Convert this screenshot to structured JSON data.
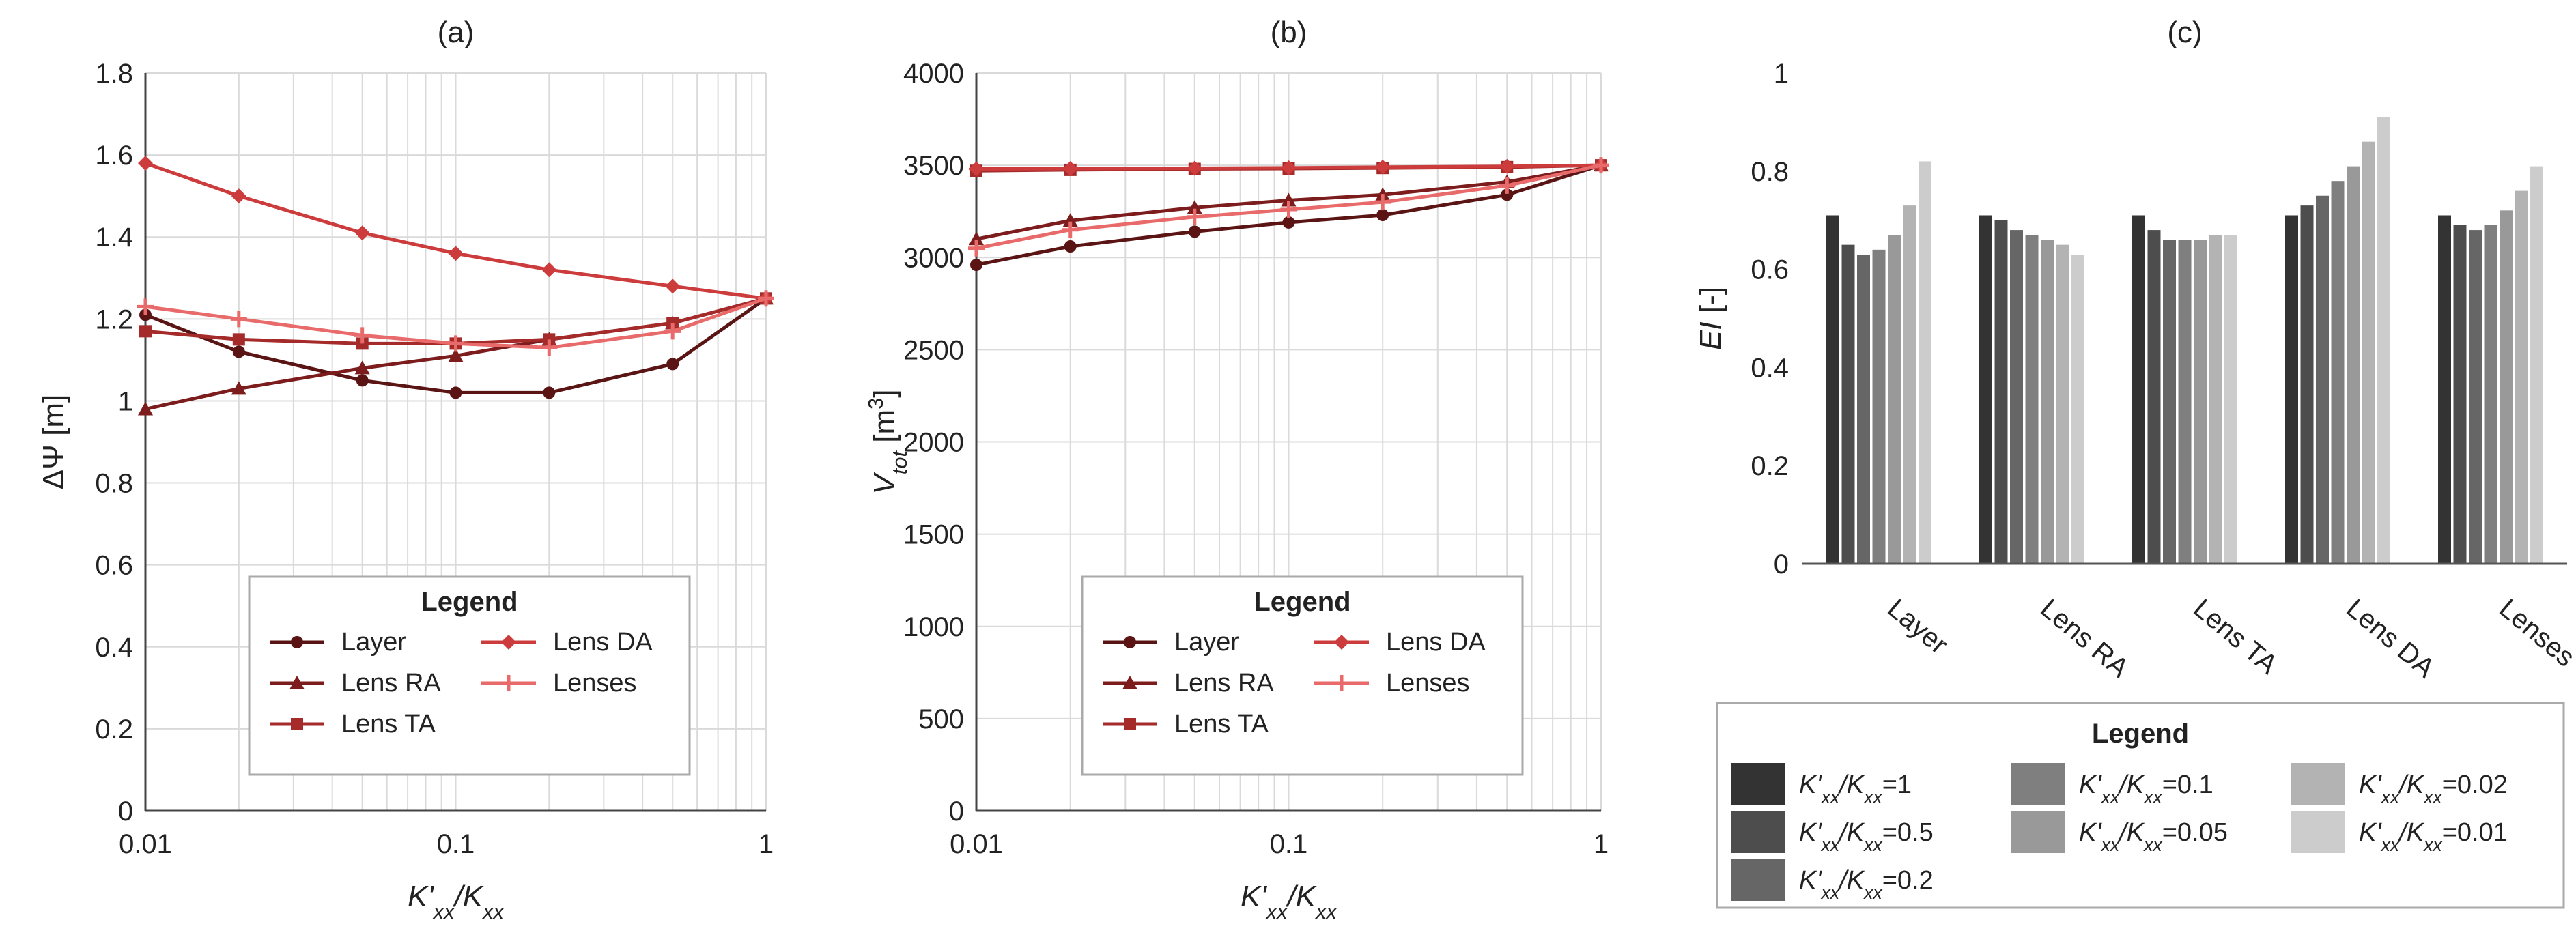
{
  "chart_data": [
    {
      "type": "line",
      "title": "(a)",
      "xscale": "log",
      "xlim": [
        0.01,
        1
      ],
      "x_ticks": [
        "0.01",
        "0.1",
        "1"
      ],
      "ylim": [
        0,
        1.8
      ],
      "y_ticks": [
        "0",
        "0.2",
        "0.4",
        "0.6",
        "0.8",
        "1",
        "1.2",
        "1.4",
        "1.6",
        "1.8"
      ],
      "ylabel": "ΔΨ [m]",
      "xlabel": {
        "base": "K'",
        "sub": "xx",
        "mid": "/K",
        "sub2": "xx"
      },
      "x": [
        0.01,
        0.02,
        0.05,
        0.1,
        0.2,
        0.5,
        1
      ],
      "series": [
        {
          "name": "Layer",
          "color": "#5a1414",
          "marker": "circle",
          "values": [
            1.21,
            1.12,
            1.05,
            1.02,
            1.02,
            1.09,
            1.25
          ]
        },
        {
          "name": "Lens RA",
          "color": "#7d1c1c",
          "marker": "triangle",
          "values": [
            0.98,
            1.03,
            1.08,
            1.11,
            1.15,
            1.19,
            1.25
          ]
        },
        {
          "name": "Lens TA",
          "color": "#a52a2a",
          "marker": "square",
          "values": [
            1.17,
            1.15,
            1.14,
            1.14,
            1.15,
            1.19,
            1.25
          ]
        },
        {
          "name": "Lens DA",
          "color": "#cd3c3c",
          "marker": "diamond",
          "values": [
            1.58,
            1.5,
            1.41,
            1.36,
            1.32,
            1.28,
            1.25
          ]
        },
        {
          "name": "Lenses",
          "color": "#e86a6a",
          "marker": "plus",
          "values": [
            1.23,
            1.2,
            1.16,
            1.14,
            1.13,
            1.17,
            1.25
          ]
        }
      ],
      "legend": {
        "title": "Legend",
        "placement": "bottom-center"
      }
    },
    {
      "type": "line",
      "title": "(b)",
      "xscale": "log",
      "xlim": [
        0.01,
        1
      ],
      "x_ticks": [
        "0.01",
        "0.1",
        "1"
      ],
      "ylim": [
        0,
        4000
      ],
      "y_ticks": [
        "0",
        "500",
        "1000",
        "1500",
        "2000",
        "2500",
        "3000",
        "3500",
        "4000"
      ],
      "ylabel": {
        "italic": "V",
        "sub": "tot",
        "rest": " [m",
        "sup": "3",
        "end": "]"
      },
      "xlabel": {
        "base": "K'",
        "sub": "xx",
        "mid": "/K",
        "sub2": "xx"
      },
      "x": [
        0.01,
        0.02,
        0.05,
        0.1,
        0.2,
        0.5,
        1
      ],
      "series": [
        {
          "name": "Layer",
          "color": "#5a1414",
          "marker": "circle",
          "values": [
            2960,
            3060,
            3140,
            3190,
            3230,
            3340,
            3500
          ]
        },
        {
          "name": "Lens RA",
          "color": "#7d1c1c",
          "marker": "triangle",
          "values": [
            3100,
            3200,
            3270,
            3310,
            3340,
            3410,
            3500
          ]
        },
        {
          "name": "Lens TA",
          "color": "#a52a2a",
          "marker": "square",
          "values": [
            3470,
            3475,
            3480,
            3482,
            3485,
            3490,
            3500
          ]
        },
        {
          "name": "Lens DA",
          "color": "#cd3c3c",
          "marker": "diamond",
          "values": [
            3480,
            3482,
            3484,
            3486,
            3490,
            3494,
            3500
          ]
        },
        {
          "name": "Lenses",
          "color": "#e86a6a",
          "marker": "plus",
          "values": [
            3050,
            3150,
            3220,
            3260,
            3300,
            3390,
            3500
          ]
        }
      ],
      "legend": {
        "title": "Legend",
        "placement": "bottom-center"
      }
    },
    {
      "type": "bar",
      "title": "(c)",
      "ylim": [
        0,
        1
      ],
      "y_ticks": [
        "0",
        "0.2",
        "0.4",
        "0.6",
        "0.8",
        "1"
      ],
      "ylabel": {
        "italic": "EI",
        "rest": " [-]"
      },
      "categories": [
        "Layer",
        "Lens RA",
        "Lens TA",
        "Lens DA",
        "Lenses"
      ],
      "series": [
        {
          "name": "K'xx/Kxx=1",
          "ratio": "1",
          "color": "#333333",
          "values": [
            0.71,
            0.71,
            0.71,
            0.71,
            0.71
          ]
        },
        {
          "name": "K'xx/Kxx=0.5",
          "ratio": "0.5",
          "color": "#4d4d4d",
          "values": [
            0.65,
            0.7,
            0.68,
            0.73,
            0.69
          ]
        },
        {
          "name": "K'xx/Kxx=0.2",
          "ratio": "0.2",
          "color": "#666666",
          "values": [
            0.63,
            0.68,
            0.66,
            0.75,
            0.68
          ]
        },
        {
          "name": "K'xx/Kxx=0.1",
          "ratio": "0.1",
          "color": "#7f7f7f",
          "values": [
            0.64,
            0.67,
            0.66,
            0.78,
            0.69
          ]
        },
        {
          "name": "K'xx/Kxx=0.05",
          "ratio": "0.05",
          "color": "#999999",
          "values": [
            0.67,
            0.66,
            0.66,
            0.81,
            0.72
          ]
        },
        {
          "name": "K'xx/Kxx=0.02",
          "ratio": "0.02",
          "color": "#b3b3b3",
          "values": [
            0.73,
            0.65,
            0.67,
            0.86,
            0.76
          ]
        },
        {
          "name": "K'xx/Kxx=0.01",
          "ratio": "0.01",
          "color": "#cccccc",
          "values": [
            0.82,
            0.63,
            0.67,
            0.91,
            0.81
          ]
        }
      ],
      "legend": {
        "title": "Legend",
        "placement": "bottom"
      }
    }
  ]
}
